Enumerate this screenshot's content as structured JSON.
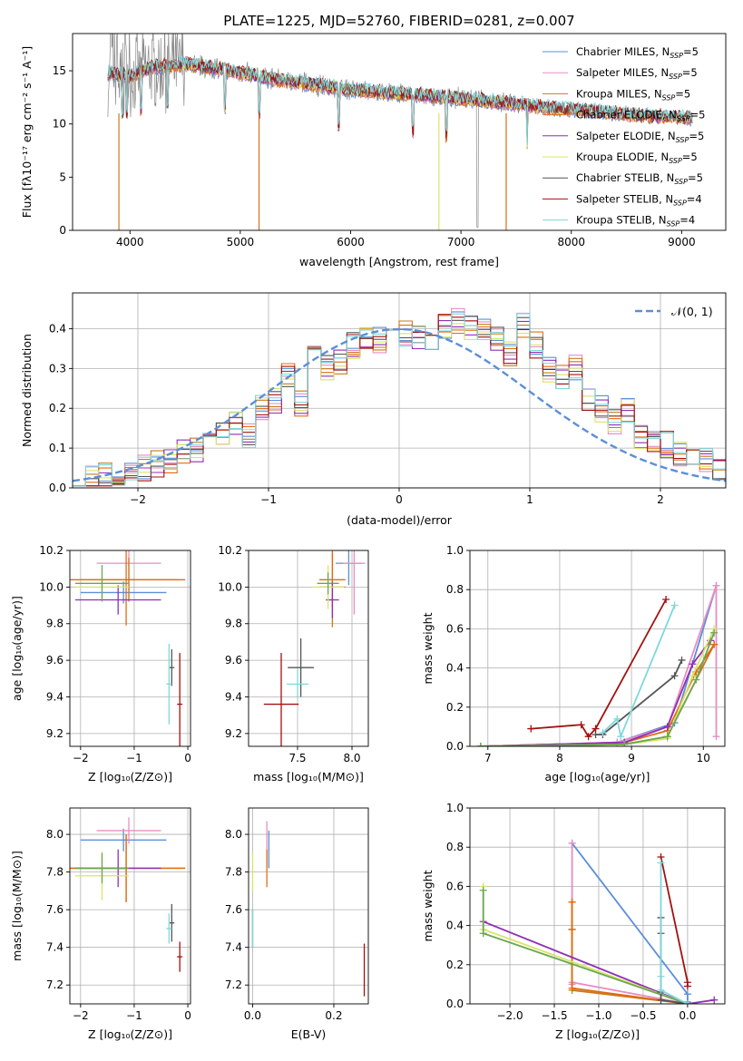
{
  "colors": [
    "#5b8fd8",
    "#e88dc2",
    "#c8791f",
    "#e06c10",
    "#8f2fb5",
    "#d8e46a",
    "#555555",
    "#a31010",
    "#7fd8dc",
    "#8a8a8a",
    "#6aa84f"
  ],
  "chart_data": [
    {
      "id": "spectrum",
      "type": "line",
      "title": "PLATE=1225, MJD=52760, FIBERID=0281, z=0.007",
      "xlabel": "wavelength [Angstrom, rest frame]",
      "ylabel": "Flux [fλ10⁻¹⁷ erg cm⁻² s⁻¹ A⁻¹]",
      "xlim": [
        3480,
        9400
      ],
      "ylim": [
        0,
        18.5
      ],
      "xticks": [
        4000,
        5000,
        6000,
        7000,
        8000,
        9000
      ],
      "yticks": [
        0,
        5,
        10,
        15
      ],
      "data_range": [
        3800,
        9100
      ],
      "continuum": {
        "x": [
          3800,
          4000,
          4200,
          4500,
          4800,
          5000,
          5300,
          5600,
          6000,
          6500,
          7000,
          7500,
          7800,
          8200,
          8600,
          9000,
          9100
        ],
        "y": [
          14.8,
          14.5,
          15.3,
          15.6,
          15.2,
          14.8,
          14.2,
          13.8,
          13.2,
          12.8,
          12.4,
          11.9,
          11.5,
          11.2,
          10.8,
          10.6,
          10.5
        ]
      },
      "legend": [
        {
          "label": "Chabrier MILES, N",
          "sub": "SSP",
          "rest": "=5",
          "color": "#5b8fd8"
        },
        {
          "label": "Salpeter MILES, N",
          "sub": "SSP",
          "rest": "=5",
          "color": "#e88dc2"
        },
        {
          "label": "Kroupa MILES, N",
          "sub": "SSP",
          "rest": "=5",
          "color": "#c8791f"
        },
        {
          "label": "Chabrier ELODIE, N",
          "sub": "SSP",
          "rest": "=5",
          "color": "#e06c10"
        },
        {
          "label": "Salpeter ELODIE, N",
          "sub": "SSP",
          "rest": "=5",
          "color": "#8f2fb5"
        },
        {
          "label": "Kroupa ELODIE, N",
          "sub": "SSP",
          "rest": "=5",
          "color": "#d8e46a"
        },
        {
          "label": "Chabrier STELIB, N",
          "sub": "SSP",
          "rest": "=5",
          "color": "#555555"
        },
        {
          "label": "Salpeter STELIB, N",
          "sub": "SSP",
          "rest": "=4",
          "color": "#a31010"
        },
        {
          "label": "Kroupa STELIB, N",
          "sub": "SSP",
          "rest": "=4",
          "color": "#7fd8dc"
        }
      ]
    },
    {
      "id": "residuals",
      "type": "step",
      "xlabel": "(data-model)/error",
      "ylabel": "Normed distribution",
      "xlim": [
        -2.5,
        2.5
      ],
      "ylim": [
        0,
        0.49
      ],
      "xticks": [
        -2,
        -1,
        0,
        1,
        2
      ],
      "yticks": [
        0.0,
        0.1,
        0.2,
        0.3,
        0.4
      ],
      "bin_width": 0.1,
      "gaussian_label": "𝒩(0, 1)",
      "base_hist": [
        0.015,
        0.02,
        0.03,
        0.04,
        0.04,
        0.05,
        0.06,
        0.07,
        0.09,
        0.1,
        0.12,
        0.13,
        0.16,
        0.13,
        0.2,
        0.22,
        0.28,
        0.21,
        0.34,
        0.3,
        0.32,
        0.36,
        0.38,
        0.37,
        0.4,
        0.39,
        0.38,
        0.38,
        0.41,
        0.42,
        0.4,
        0.39,
        0.37,
        0.34,
        0.41,
        0.36,
        0.3,
        0.28,
        0.3,
        0.22,
        0.2,
        0.17,
        0.19,
        0.13,
        0.12,
        0.11,
        0.09,
        0.07,
        0.07,
        0.05
      ],
      "series_colors": [
        "#5b8fd8",
        "#e88dc2",
        "#c8791f",
        "#e06c10",
        "#8f2fb5",
        "#d8e46a",
        "#555555",
        "#a31010",
        "#7fd8dc"
      ]
    },
    {
      "id": "age_Z",
      "type": "errorbar",
      "xlabel": "Z [log₁₀(Z/Z⊙)]",
      "ylabel": "age  [log₁₀(age/yr)]",
      "xlim": [
        -2.2,
        0.05
      ],
      "ylim": [
        9.13,
        10.2
      ],
      "xticks": [
        -2,
        -1,
        0
      ],
      "yticks": [
        9.2,
        9.4,
        9.6,
        9.8,
        10.0,
        10.2
      ],
      "points": [
        {
          "x": -1.2,
          "y": 9.97,
          "xerr": 0.8,
          "yerr": 0.06,
          "color": "#5b8fd8"
        },
        {
          "x": -1.1,
          "y": 10.13,
          "xerr": 0.6,
          "yerr": 0.2,
          "color": "#e88dc2"
        },
        {
          "x": -1.1,
          "y": 10.04,
          "xerr": 0.9,
          "yerr": 0.12,
          "color": "#c8791f"
        },
        {
          "x": -1.15,
          "y": 10.04,
          "xerr": 1.1,
          "yerr": 0.25,
          "color": "#e06c10"
        },
        {
          "x": -1.3,
          "y": 9.93,
          "xerr": 0.8,
          "yerr": 0.08,
          "color": "#8f2fb5"
        },
        {
          "x": -1.6,
          "y": 10.0,
          "xerr": 0.5,
          "yerr": 0.06,
          "color": "#d8e46a"
        },
        {
          "x": -1.6,
          "y": 10.02,
          "xerr": 0.5,
          "yerr": 0.1,
          "color": "#6aa84f"
        },
        {
          "x": -0.3,
          "y": 9.56,
          "xerr": 0.05,
          "yerr": 0.1,
          "color": "#555555"
        },
        {
          "x": -0.15,
          "y": 9.36,
          "xerr": 0.05,
          "yerr": 0.28,
          "color": "#a31010"
        },
        {
          "x": -0.35,
          "y": 9.47,
          "xerr": 0.05,
          "yerr": 0.22,
          "color": "#7fd8dc"
        }
      ]
    },
    {
      "id": "age_mass",
      "type": "errorbar",
      "xlabel": "mass [log₁₀(M/M⊙)]",
      "ylabel": "",
      "xlim": [
        7.05,
        8.15
      ],
      "ylim": [
        9.13,
        10.2
      ],
      "xticks": [
        7.5,
        8.0
      ],
      "yticks": [
        9.2,
        9.4,
        9.6,
        9.8,
        10.0,
        10.2
      ],
      "points": [
        {
          "x": 7.97,
          "y": 10.13,
          "xerr": 0.12,
          "yerr": 0.12,
          "color": "#5b8fd8"
        },
        {
          "x": 8.02,
          "y": 10.13,
          "xerr": 0.1,
          "yerr": 0.28,
          "color": "#e88dc2"
        },
        {
          "x": 7.82,
          "y": 10.0,
          "xerr": 0.12,
          "yerr": 0.22,
          "color": "#c8791f"
        },
        {
          "x": 7.82,
          "y": 10.04,
          "xerr": 0.12,
          "yerr": 0.15,
          "color": "#e06c10"
        },
        {
          "x": 7.82,
          "y": 9.93,
          "xerr": 0.06,
          "yerr": 0.1,
          "color": "#8f2fb5"
        },
        {
          "x": 7.78,
          "y": 10.0,
          "xerr": 0.15,
          "yerr": 0.12,
          "color": "#d8e46a"
        },
        {
          "x": 7.78,
          "y": 10.02,
          "xerr": 0.1,
          "yerr": 0.06,
          "color": "#6aa84f"
        },
        {
          "x": 7.53,
          "y": 9.56,
          "xerr": 0.12,
          "yerr": 0.16,
          "color": "#555555"
        },
        {
          "x": 7.35,
          "y": 9.36,
          "xerr": 0.16,
          "yerr": 0.28,
          "color": "#a31010"
        },
        {
          "x": 7.5,
          "y": 9.47,
          "xerr": 0.1,
          "yerr": 0.08,
          "color": "#7fd8dc"
        }
      ]
    },
    {
      "id": "mw_age",
      "type": "line",
      "xlabel": "age  [log₁₀(age/yr)]",
      "ylabel": "mass weight",
      "xlim": [
        6.75,
        10.3
      ],
      "ylim": [
        0,
        1.0
      ],
      "xticks": [
        7,
        8,
        9,
        10
      ],
      "yticks": [
        0.0,
        0.2,
        0.4,
        0.6,
        0.8,
        1.0
      ],
      "series": [
        {
          "color": "#5b8fd8",
          "x": [
            6.9,
            8.8,
            9.6,
            10.18
          ],
          "y": [
            0.0,
            0.02,
            0.12,
            0.82
          ]
        },
        {
          "color": "#e88dc2",
          "x": [
            6.9,
            8.8,
            9.5,
            10.18,
            10.18
          ],
          "y": [
            0.0,
            0.02,
            0.1,
            0.82,
            0.05
          ]
        },
        {
          "color": "#c8791f",
          "x": [
            6.9,
            8.9,
            9.5,
            10.15
          ],
          "y": [
            0.0,
            0.01,
            0.05,
            0.52
          ]
        },
        {
          "color": "#e06c10",
          "x": [
            6.9,
            8.9,
            9.5,
            9.9,
            10.15
          ],
          "y": [
            0.0,
            0.02,
            0.08,
            0.38,
            0.52
          ]
        },
        {
          "color": "#8f2fb5",
          "x": [
            6.9,
            8.9,
            9.5,
            9.85,
            10.1
          ],
          "y": [
            0.0,
            0.02,
            0.1,
            0.42,
            0.54
          ]
        },
        {
          "color": "#d8e46a",
          "x": [
            6.9,
            8.9,
            9.5,
            9.85,
            10.15
          ],
          "y": [
            0.0,
            0.01,
            0.04,
            0.36,
            0.6
          ]
        },
        {
          "color": "#6aa84f",
          "x": [
            6.9,
            8.9,
            9.5,
            9.9,
            10.15
          ],
          "y": [
            0.0,
            0.01,
            0.05,
            0.34,
            0.58
          ]
        },
        {
          "color": "#555555",
          "x": [
            8.5,
            8.6,
            9.6,
            9.7
          ],
          "y": [
            0.06,
            0.06,
            0.36,
            0.44
          ]
        },
        {
          "color": "#a31010",
          "x": [
            7.6,
            8.3,
            8.4,
            8.5,
            9.48
          ],
          "y": [
            0.09,
            0.11,
            0.05,
            0.09,
            0.75
          ]
        },
        {
          "color": "#7fd8dc",
          "x": [
            8.6,
            8.8,
            8.85,
            9.6
          ],
          "y": [
            0.07,
            0.14,
            0.05,
            0.72
          ]
        }
      ]
    },
    {
      "id": "mass_Z",
      "type": "errorbar",
      "xlabel": "Z [log₁₀(Z/Z⊙)]",
      "ylabel": "mass [log₁₀(M/M⊙)]",
      "xlim": [
        -2.2,
        0.05
      ],
      "ylim": [
        7.1,
        8.14
      ],
      "xticks": [
        -2,
        -1,
        0
      ],
      "yticks": [
        7.2,
        7.4,
        7.6,
        7.8,
        8.0
      ],
      "points": [
        {
          "x": -1.2,
          "y": 7.97,
          "xerr": 0.8,
          "yerr": 0.06,
          "color": "#5b8fd8"
        },
        {
          "x": -1.1,
          "y": 8.02,
          "xerr": 0.6,
          "yerr": 0.07,
          "color": "#e88dc2"
        },
        {
          "x": -1.15,
          "y": 7.82,
          "xerr": 1.1,
          "yerr": 0.18,
          "color": "#c8791f"
        },
        {
          "x": -1.15,
          "y": 7.82,
          "xerr": 1.1,
          "yerr": 0.18,
          "color": "#e06c10"
        },
        {
          "x": -1.3,
          "y": 7.82,
          "xerr": 0.8,
          "yerr": 0.1,
          "color": "#8f2fb5"
        },
        {
          "x": -1.6,
          "y": 7.78,
          "xerr": 0.5,
          "yerr": 0.13,
          "color": "#d8e46a"
        },
        {
          "x": -1.6,
          "y": 7.82,
          "xerr": 0.5,
          "yerr": 0.08,
          "color": "#6aa84f"
        },
        {
          "x": -0.3,
          "y": 7.53,
          "xerr": 0.05,
          "yerr": 0.1,
          "color": "#555555"
        },
        {
          "x": -0.15,
          "y": 7.35,
          "xerr": 0.05,
          "yerr": 0.08,
          "color": "#a31010"
        },
        {
          "x": -0.35,
          "y": 7.5,
          "xerr": 0.05,
          "yerr": 0.08,
          "color": "#7fd8dc"
        }
      ]
    },
    {
      "id": "mass_ebv",
      "type": "errorbar",
      "xlabel": "E(B-V)",
      "ylabel": "",
      "xlim": [
        -0.01,
        0.285
      ],
      "ylim": [
        7.1,
        8.14
      ],
      "xticks": [
        0.0,
        0.2
      ],
      "yticks": [
        7.2,
        7.4,
        7.6,
        7.8,
        8.0
      ],
      "points": [
        {
          "x": 0.04,
          "y": 7.92,
          "xerr": 0.0,
          "yerr": 0.1,
          "color": "#5b8fd8"
        },
        {
          "x": 0.035,
          "y": 7.95,
          "xerr": 0.0,
          "yerr": 0.12,
          "color": "#e88dc2"
        },
        {
          "x": 0.035,
          "y": 7.82,
          "xerr": 0.0,
          "yerr": 0.1,
          "color": "#e06c10"
        },
        {
          "x": 0.0,
          "y": 7.8,
          "xerr": 0.0,
          "yerr": 0.1,
          "color": "#d8e46a"
        },
        {
          "x": 0.0,
          "y": 7.5,
          "xerr": 0.0,
          "yerr": 0.1,
          "color": "#555555"
        },
        {
          "x": 0.275,
          "y": 7.28,
          "xerr": 0.0,
          "yerr": 0.14,
          "color": "#a31010"
        },
        {
          "x": 0.0,
          "y": 7.5,
          "xerr": 0.0,
          "yerr": 0.1,
          "color": "#7fd8dc"
        }
      ]
    },
    {
      "id": "mw_Z",
      "type": "line",
      "xlabel": "Z [log₁₀(Z/Z⊙)]",
      "ylabel": "mass weight",
      "xlim": [
        -2.45,
        0.42
      ],
      "ylim": [
        0,
        1.0
      ],
      "xticks": [
        -2.0,
        -1.5,
        -1.0,
        -0.5,
        0.0
      ],
      "yticks": [
        0.0,
        0.2,
        0.4,
        0.6,
        0.8,
        1.0
      ],
      "series": [
        {
          "color": "#5b8fd8",
          "x": [
            -1.3,
            0.0,
            0.0
          ],
          "y": [
            0.82,
            0.05,
            0.01
          ]
        },
        {
          "color": "#e88dc2",
          "x": [
            -1.3,
            -1.3,
            -1.3,
            0.0
          ],
          "y": [
            0.82,
            0.1,
            0.11,
            0.0
          ]
        },
        {
          "color": "#c8791f",
          "x": [
            -1.3,
            -1.3,
            -1.3,
            0.0
          ],
          "y": [
            0.52,
            0.38,
            0.07,
            0.0
          ]
        },
        {
          "color": "#e06c10",
          "x": [
            -1.3,
            -1.3,
            -1.3,
            0.0
          ],
          "y": [
            0.52,
            0.38,
            0.08,
            0.0
          ]
        },
        {
          "color": "#8f2fb5",
          "x": [
            -2.3,
            0.0,
            0.3
          ],
          "y": [
            0.42,
            0.0,
            0.02
          ]
        },
        {
          "color": "#d8e46a",
          "x": [
            -2.3,
            -2.3,
            0.0
          ],
          "y": [
            0.6,
            0.38,
            0.0
          ]
        },
        {
          "color": "#6aa84f",
          "x": [
            -2.3,
            -2.3,
            0.0
          ],
          "y": [
            0.58,
            0.36,
            0.0
          ]
        },
        {
          "color": "#555555",
          "x": [
            -0.3,
            -0.3,
            -0.3,
            -0.3,
            0.0
          ],
          "y": [
            0.44,
            0.36,
            0.06,
            0.02,
            0.0
          ]
        },
        {
          "color": "#a31010",
          "x": [
            -0.3,
            0.0,
            0.0
          ],
          "y": [
            0.75,
            0.11,
            0.09
          ]
        },
        {
          "color": "#7fd8dc",
          "x": [
            -0.3,
            -0.3,
            -0.3,
            0.0
          ],
          "y": [
            0.72,
            0.14,
            0.07,
            0.0
          ]
        }
      ]
    }
  ]
}
